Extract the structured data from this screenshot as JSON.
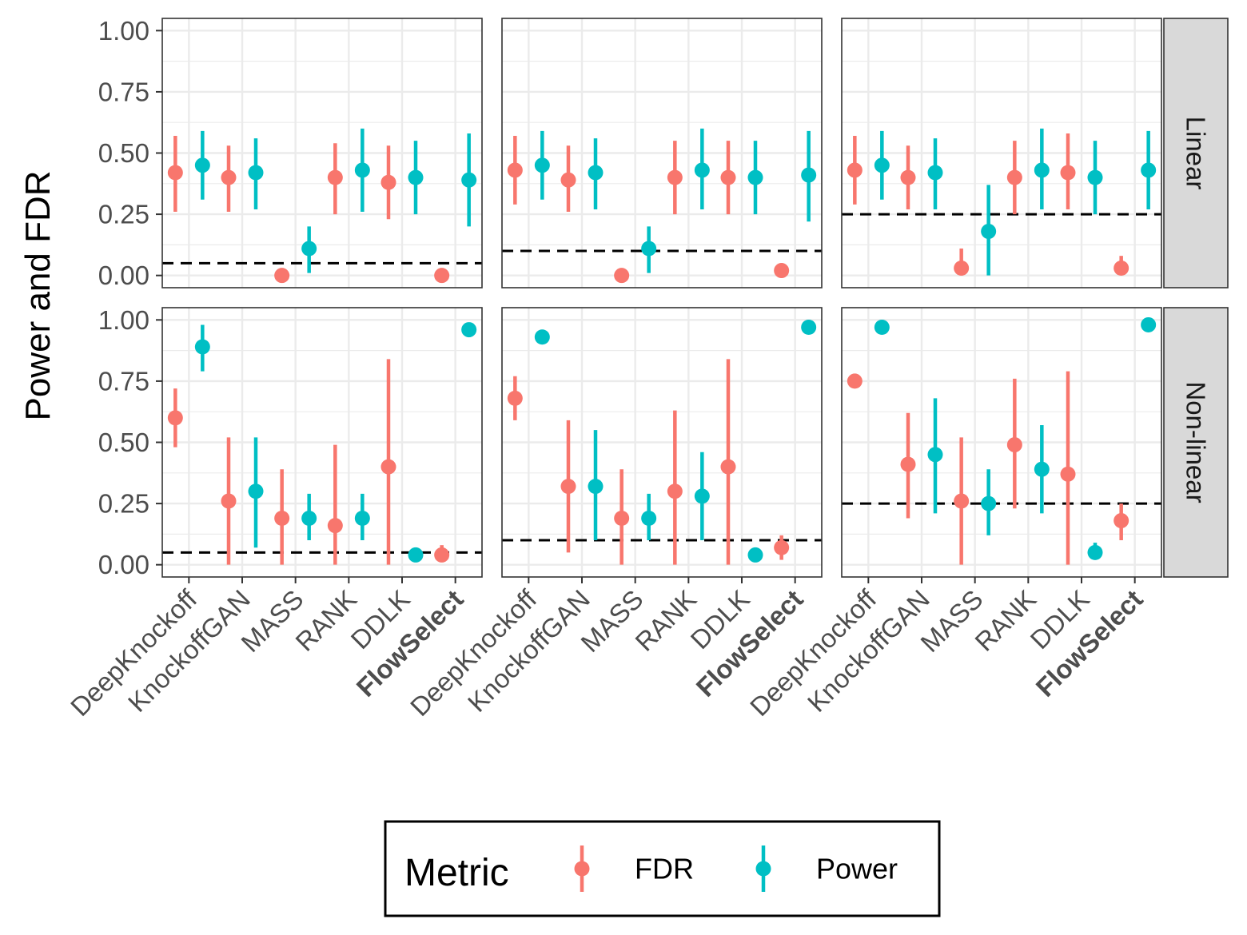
{
  "chart_data": {
    "type": "pointrange",
    "ylabel": "Power and FDR",
    "xlabel": "",
    "ylim": [
      -0.05,
      1.05
    ],
    "yticks": [
      0.0,
      0.25,
      0.5,
      0.75,
      1.0
    ],
    "ytick_labels": [
      "0.00",
      "0.25",
      "0.50",
      "0.75",
      "1.00"
    ],
    "categories": [
      "DeepKnockoff",
      "KnockoffGAN",
      "MASS",
      "RANK",
      "DDLK",
      "FlowSelect"
    ],
    "bold_categories": [
      "FlowSelect"
    ],
    "row_labels": [
      "Linear",
      "Non-linear"
    ],
    "legend": {
      "title": "Metric",
      "position": "bottom",
      "entries": [
        {
          "name": "FDR",
          "color": "#F8766D"
        },
        {
          "name": "Power",
          "color": "#00BFC4"
        }
      ]
    },
    "panels": [
      {
        "row": "Linear",
        "col": 1,
        "threshold": 0.05,
        "fdr": {
          "values": [
            0.42,
            0.4,
            0.0,
            0.4,
            0.38,
            0.0
          ],
          "lower": [
            0.26,
            0.26,
            0.0,
            0.25,
            0.23,
            0.0
          ],
          "upper": [
            0.57,
            0.53,
            0.0,
            0.54,
            0.53,
            0.0
          ]
        },
        "power": {
          "values": [
            0.45,
            0.42,
            0.11,
            0.43,
            0.4,
            0.39
          ],
          "lower": [
            0.31,
            0.27,
            0.01,
            0.26,
            0.25,
            0.2
          ],
          "upper": [
            0.59,
            0.56,
            0.2,
            0.6,
            0.55,
            0.58
          ]
        }
      },
      {
        "row": "Linear",
        "col": 2,
        "threshold": 0.1,
        "fdr": {
          "values": [
            0.43,
            0.39,
            0.0,
            0.4,
            0.4,
            0.02
          ],
          "lower": [
            0.29,
            0.26,
            0.0,
            0.25,
            0.25,
            0.01
          ],
          "upper": [
            0.57,
            0.53,
            0.0,
            0.55,
            0.55,
            0.03
          ]
        },
        "power": {
          "values": [
            0.45,
            0.42,
            0.11,
            0.43,
            0.4,
            0.41
          ],
          "lower": [
            0.31,
            0.27,
            0.01,
            0.27,
            0.25,
            0.22
          ],
          "upper": [
            0.59,
            0.56,
            0.2,
            0.6,
            0.55,
            0.59
          ]
        }
      },
      {
        "row": "Linear",
        "col": 3,
        "threshold": 0.25,
        "fdr": {
          "values": [
            0.43,
            0.4,
            0.03,
            0.4,
            0.42,
            0.03
          ],
          "lower": [
            0.29,
            0.27,
            0.0,
            0.25,
            0.27,
            0.01
          ],
          "upper": [
            0.57,
            0.53,
            0.11,
            0.55,
            0.58,
            0.08
          ]
        },
        "power": {
          "values": [
            0.45,
            0.42,
            0.18,
            0.43,
            0.4,
            0.43
          ],
          "lower": [
            0.31,
            0.27,
            0.0,
            0.27,
            0.25,
            0.27
          ],
          "upper": [
            0.59,
            0.56,
            0.37,
            0.6,
            0.55,
            0.59
          ]
        }
      },
      {
        "row": "Non-linear",
        "col": 1,
        "threshold": 0.05,
        "fdr": {
          "values": [
            0.6,
            0.26,
            0.19,
            0.16,
            0.4,
            0.04
          ],
          "lower": [
            0.48,
            0.0,
            0.0,
            0.0,
            0.0,
            0.01
          ],
          "upper": [
            0.72,
            0.52,
            0.39,
            0.49,
            0.84,
            0.08
          ]
        },
        "power": {
          "values": [
            0.89,
            0.3,
            0.19,
            0.19,
            0.04,
            0.96
          ],
          "lower": [
            0.79,
            0.07,
            0.1,
            0.1,
            0.01,
            0.93
          ],
          "upper": [
            0.98,
            0.52,
            0.29,
            0.29,
            0.06,
            0.98
          ]
        }
      },
      {
        "row": "Non-linear",
        "col": 2,
        "threshold": 0.1,
        "fdr": {
          "values": [
            0.68,
            0.32,
            0.19,
            0.3,
            0.4,
            0.07
          ],
          "lower": [
            0.59,
            0.05,
            0.0,
            0.0,
            0.0,
            0.02
          ],
          "upper": [
            0.77,
            0.59,
            0.39,
            0.63,
            0.84,
            0.12
          ]
        },
        "power": {
          "values": [
            0.93,
            0.32,
            0.19,
            0.28,
            0.04,
            0.97
          ],
          "lower": [
            0.91,
            0.1,
            0.1,
            0.1,
            0.01,
            0.95
          ],
          "upper": [
            0.94,
            0.55,
            0.29,
            0.46,
            0.06,
            0.98
          ]
        }
      },
      {
        "row": "Non-linear",
        "col": 3,
        "threshold": 0.25,
        "fdr": {
          "values": [
            0.75,
            0.41,
            0.26,
            0.49,
            0.37,
            0.18
          ],
          "lower": [
            0.73,
            0.19,
            0.0,
            0.23,
            0.0,
            0.1
          ],
          "upper": [
            0.77,
            0.62,
            0.52,
            0.76,
            0.79,
            0.25
          ]
        },
        "power": {
          "values": [
            0.97,
            0.45,
            0.25,
            0.39,
            0.05,
            0.98
          ],
          "lower": [
            0.95,
            0.21,
            0.12,
            0.21,
            0.02,
            0.97
          ],
          "upper": [
            0.98,
            0.68,
            0.39,
            0.57,
            0.09,
            0.99
          ]
        }
      }
    ]
  }
}
